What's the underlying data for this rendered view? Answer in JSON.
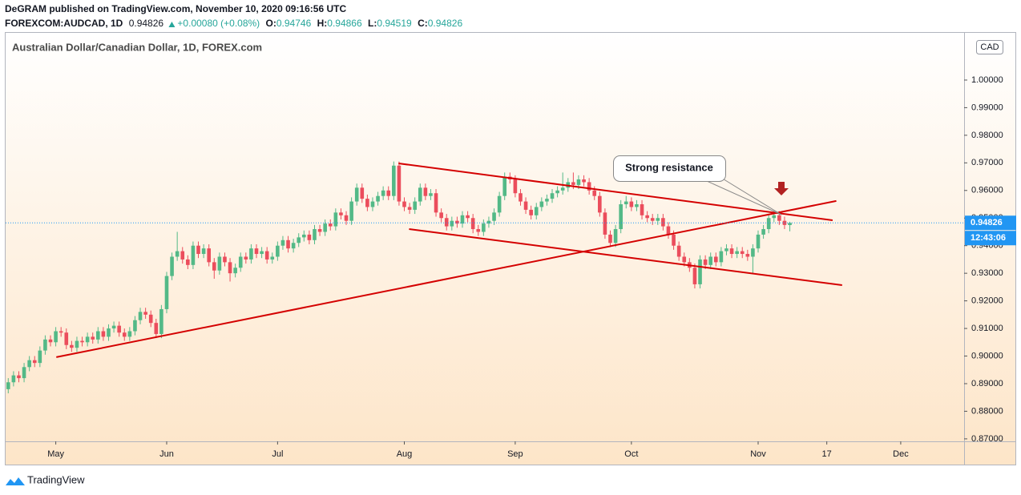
{
  "header": {
    "publisher": "DeGRAM published on TradingView.com, November 10, 2020 09:16:56 UTC",
    "symbol": "FOREXCOM:AUDCAD, 1D",
    "change": "+0.00080 (+0.08%)",
    "ohlc_labels": [
      "O:",
      "H:",
      "L:",
      "C:"
    ]
  },
  "brand": "TradingView",
  "chart_data": {
    "type": "candlestick",
    "title": "Australian Dollar/Canadian Dollar, 1D, FOREX.com",
    "currency": "CAD",
    "countdown": "12:43:06",
    "annotation": "Strong resistance",
    "up_color": "#53b987",
    "down_color": "#eb4d5c",
    "line_color": "#d40000",
    "price_line_color": "#2196f3",
    "xlim": [
      -0.5,
      181
    ],
    "ylim": [
      0.8691,
      1.0174
    ],
    "xticks": [
      {
        "value": 9,
        "label": "May"
      },
      {
        "value": 30,
        "label": "Jun"
      },
      {
        "value": 51,
        "label": "Jul"
      },
      {
        "value": 75,
        "label": "Aug"
      },
      {
        "value": 96,
        "label": "Sep"
      },
      {
        "value": 118,
        "label": "Oct"
      },
      {
        "value": 142,
        "label": "Nov"
      },
      {
        "value": 155,
        "label": "17"
      },
      {
        "value": 169,
        "label": "Dec"
      }
    ],
    "yticks": [
      {
        "value": 0.87,
        "label": "0.87000"
      },
      {
        "value": 0.88,
        "label": "0.88000"
      },
      {
        "value": 0.89,
        "label": "0.89000"
      },
      {
        "value": 0.9,
        "label": "0.90000"
      },
      {
        "value": 0.91,
        "label": "0.91000"
      },
      {
        "value": 0.92,
        "label": "0.92000"
      },
      {
        "value": 0.93,
        "label": "0.93000"
      },
      {
        "value": 0.94,
        "label": "0.94000"
      },
      {
        "value": 0.95,
        "label": "0.95000"
      },
      {
        "value": 0.96,
        "label": "0.96000"
      },
      {
        "value": 0.97,
        "label": "0.97000"
      },
      {
        "value": 0.98,
        "label": "0.98000"
      },
      {
        "value": 0.99,
        "label": "0.99000"
      },
      {
        "value": 1,
        "label": "1.00000"
      }
    ],
    "trendlines": [
      {
        "from": [
          9.1,
          0.8996
        ],
        "to": [
          156.8,
          0.9562
        ]
      },
      {
        "from": [
          73.9,
          0.9698
        ],
        "to": [
          156.1,
          0.9492
        ]
      },
      {
        "from": [
          75.9,
          0.946
        ],
        "to": [
          157.9,
          0.9257
        ]
      }
    ],
    "candles": [
      [
        0.888,
        0.892,
        0.8865,
        0.8905
      ],
      [
        0.8905,
        0.8945,
        0.889,
        0.893
      ],
      [
        0.893,
        0.8945,
        0.8905,
        0.892
      ],
      [
        0.892,
        0.8975,
        0.8905,
        0.896
      ],
      [
        0.896,
        0.9,
        0.8945,
        0.8985
      ],
      [
        0.8985,
        0.9,
        0.896,
        0.8975
      ],
      [
        0.8975,
        0.9035,
        0.896,
        0.902
      ],
      [
        0.902,
        0.9075,
        0.9005,
        0.906
      ],
      [
        0.906,
        0.9075,
        0.9035,
        0.905
      ],
      [
        0.905,
        0.9105,
        0.9035,
        0.909
      ],
      [
        0.909,
        0.9105,
        0.907,
        0.9085
      ],
      [
        0.9085,
        0.91,
        0.9025,
        0.904
      ],
      [
        0.904,
        0.9055,
        0.9015,
        0.903
      ],
      [
        0.903,
        0.907,
        0.9015,
        0.9055
      ],
      [
        0.9055,
        0.907,
        0.9035,
        0.905
      ],
      [
        0.905,
        0.9085,
        0.9035,
        0.907
      ],
      [
        0.907,
        0.9085,
        0.9045,
        0.906
      ],
      [
        0.906,
        0.9105,
        0.9045,
        0.909
      ],
      [
        0.909,
        0.9105,
        0.9055,
        0.907
      ],
      [
        0.907,
        0.9115,
        0.9055,
        0.91
      ],
      [
        0.91,
        0.9125,
        0.9085,
        0.911
      ],
      [
        0.911,
        0.9125,
        0.907,
        0.9085
      ],
      [
        0.9085,
        0.91,
        0.9055,
        0.907
      ],
      [
        0.907,
        0.9105,
        0.9055,
        0.909
      ],
      [
        0.909,
        0.9145,
        0.9075,
        0.913
      ],
      [
        0.913,
        0.9175,
        0.9115,
        0.916
      ],
      [
        0.916,
        0.9175,
        0.9135,
        0.915
      ],
      [
        0.915,
        0.9165,
        0.9105,
        0.912
      ],
      [
        0.912,
        0.9135,
        0.9065,
        0.908
      ],
      [
        0.908,
        0.9185,
        0.9065,
        0.917
      ],
      [
        0.917,
        0.9305,
        0.9155,
        0.929
      ],
      [
        0.929,
        0.9375,
        0.9275,
        0.936
      ],
      [
        0.936,
        0.945,
        0.9345,
        0.938
      ],
      [
        0.938,
        0.9395,
        0.9335,
        0.935
      ],
      [
        0.935,
        0.9365,
        0.9315,
        0.933
      ],
      [
        0.933,
        0.9415,
        0.9315,
        0.94
      ],
      [
        0.94,
        0.9415,
        0.9355,
        0.937
      ],
      [
        0.937,
        0.9405,
        0.9355,
        0.939
      ],
      [
        0.939,
        0.9405,
        0.9325,
        0.934
      ],
      [
        0.934,
        0.9355,
        0.928,
        0.931
      ],
      [
        0.931,
        0.9375,
        0.9295,
        0.936
      ],
      [
        0.936,
        0.9375,
        0.9325,
        0.934
      ],
      [
        0.934,
        0.9355,
        0.927,
        0.93
      ],
      [
        0.93,
        0.9335,
        0.9285,
        0.932
      ],
      [
        0.932,
        0.9375,
        0.9305,
        0.936
      ],
      [
        0.936,
        0.9375,
        0.9335,
        0.935
      ],
      [
        0.935,
        0.9405,
        0.9335,
        0.939
      ],
      [
        0.939,
        0.9405,
        0.9355,
        0.937
      ],
      [
        0.937,
        0.9395,
        0.9355,
        0.938
      ],
      [
        0.938,
        0.9395,
        0.9335,
        0.935
      ],
      [
        0.935,
        0.9375,
        0.9335,
        0.936
      ],
      [
        0.936,
        0.9415,
        0.9345,
        0.94
      ],
      [
        0.94,
        0.9435,
        0.9385,
        0.942
      ],
      [
        0.942,
        0.9435,
        0.9375,
        0.939
      ],
      [
        0.939,
        0.9425,
        0.9375,
        0.941
      ],
      [
        0.941,
        0.9445,
        0.9395,
        0.943
      ],
      [
        0.943,
        0.9455,
        0.9415,
        0.944
      ],
      [
        0.944,
        0.9455,
        0.9405,
        0.942
      ],
      [
        0.942,
        0.9475,
        0.9405,
        0.946
      ],
      [
        0.946,
        0.9475,
        0.9435,
        0.945
      ],
      [
        0.945,
        0.9495,
        0.9435,
        0.948
      ],
      [
        0.948,
        0.9495,
        0.9455,
        0.947
      ],
      [
        0.947,
        0.9535,
        0.9455,
        0.952
      ],
      [
        0.952,
        0.9535,
        0.9495,
        0.951
      ],
      [
        0.951,
        0.9525,
        0.9475,
        0.949
      ],
      [
        0.949,
        0.9575,
        0.9475,
        0.956
      ],
      [
        0.956,
        0.9625,
        0.9545,
        0.961
      ],
      [
        0.961,
        0.9625,
        0.9555,
        0.957
      ],
      [
        0.957,
        0.9585,
        0.9525,
        0.954
      ],
      [
        0.954,
        0.9575,
        0.9525,
        0.956
      ],
      [
        0.956,
        0.9595,
        0.9545,
        0.958
      ],
      [
        0.958,
        0.9615,
        0.9565,
        0.96
      ],
      [
        0.96,
        0.9615,
        0.9565,
        0.958
      ],
      [
        0.958,
        0.9705,
        0.9565,
        0.969
      ],
      [
        0.969,
        0.9705,
        0.9545,
        0.956
      ],
      [
        0.956,
        0.9575,
        0.9525,
        0.954
      ],
      [
        0.954,
        0.9555,
        0.9515,
        0.953
      ],
      [
        0.953,
        0.9575,
        0.9515,
        0.956
      ],
      [
        0.956,
        0.9625,
        0.9545,
        0.961
      ],
      [
        0.961,
        0.9625,
        0.9565,
        0.958
      ],
      [
        0.958,
        0.9605,
        0.9565,
        0.959
      ],
      [
        0.959,
        0.9605,
        0.9505,
        0.952
      ],
      [
        0.952,
        0.9535,
        0.9485,
        0.95
      ],
      [
        0.95,
        0.9515,
        0.9455,
        0.947
      ],
      [
        0.947,
        0.9505,
        0.9455,
        0.949
      ],
      [
        0.949,
        0.9505,
        0.9465,
        0.948
      ],
      [
        0.948,
        0.9525,
        0.9465,
        0.951
      ],
      [
        0.951,
        0.9525,
        0.9485,
        0.95
      ],
      [
        0.95,
        0.9515,
        0.9445,
        0.946
      ],
      [
        0.946,
        0.9475,
        0.9435,
        0.945
      ],
      [
        0.945,
        0.9495,
        0.9435,
        0.948
      ],
      [
        0.948,
        0.9505,
        0.9465,
        0.949
      ],
      [
        0.949,
        0.9535,
        0.9475,
        0.952
      ],
      [
        0.952,
        0.9595,
        0.9505,
        0.958
      ],
      [
        0.958,
        0.9665,
        0.9565,
        0.965
      ],
      [
        0.965,
        0.9665,
        0.9625,
        0.964
      ],
      [
        0.964,
        0.9655,
        0.9575,
        0.959
      ],
      [
        0.959,
        0.9605,
        0.9545,
        0.956
      ],
      [
        0.956,
        0.9575,
        0.9515,
        0.953
      ],
      [
        0.953,
        0.9545,
        0.9495,
        0.951
      ],
      [
        0.951,
        0.9555,
        0.9495,
        0.954
      ],
      [
        0.954,
        0.9575,
        0.9525,
        0.956
      ],
      [
        0.956,
        0.9585,
        0.9545,
        0.957
      ],
      [
        0.957,
        0.9605,
        0.9555,
        0.959
      ],
      [
        0.959,
        0.9615,
        0.9575,
        0.96
      ],
      [
        0.96,
        0.9665,
        0.9585,
        0.961
      ],
      [
        0.961,
        0.9645,
        0.9595,
        0.963
      ],
      [
        0.963,
        0.9665,
        0.9605,
        0.962
      ],
      [
        0.962,
        0.9655,
        0.9605,
        0.964
      ],
      [
        0.964,
        0.9655,
        0.9615,
        0.963
      ],
      [
        0.963,
        0.9645,
        0.9585,
        0.96
      ],
      [
        0.96,
        0.9615,
        0.9565,
        0.958
      ],
      [
        0.958,
        0.9595,
        0.9505,
        0.952
      ],
      [
        0.952,
        0.9535,
        0.9425,
        0.944
      ],
      [
        0.944,
        0.9455,
        0.9395,
        0.941
      ],
      [
        0.941,
        0.9475,
        0.9395,
        0.946
      ],
      [
        0.946,
        0.9565,
        0.9445,
        0.955
      ],
      [
        0.955,
        0.958,
        0.9535,
        0.956
      ],
      [
        0.956,
        0.9575,
        0.9525,
        0.954
      ],
      [
        0.954,
        0.9565,
        0.9525,
        0.955
      ],
      [
        0.955,
        0.9565,
        0.9495,
        0.951
      ],
      [
        0.951,
        0.9525,
        0.9485,
        0.95
      ],
      [
        0.95,
        0.9515,
        0.9475,
        0.949
      ],
      [
        0.949,
        0.9515,
        0.9475,
        0.95
      ],
      [
        0.95,
        0.9515,
        0.9455,
        0.947
      ],
      [
        0.947,
        0.9485,
        0.9425,
        0.944
      ],
      [
        0.944,
        0.9455,
        0.9385,
        0.94
      ],
      [
        0.94,
        0.9415,
        0.9345,
        0.936
      ],
      [
        0.936,
        0.9375,
        0.9325,
        0.934
      ],
      [
        0.934,
        0.9355,
        0.9305,
        0.932
      ],
      [
        0.932,
        0.9335,
        0.9245,
        0.926
      ],
      [
        0.926,
        0.9365,
        0.9245,
        0.935
      ],
      [
        0.935,
        0.9365,
        0.9315,
        0.933
      ],
      [
        0.933,
        0.9375,
        0.9315,
        0.936
      ],
      [
        0.936,
        0.9375,
        0.9325,
        0.934
      ],
      [
        0.934,
        0.9395,
        0.9325,
        0.938
      ],
      [
        0.938,
        0.9405,
        0.9365,
        0.939
      ],
      [
        0.939,
        0.9405,
        0.9355,
        0.937
      ],
      [
        0.937,
        0.9395,
        0.9355,
        0.938
      ],
      [
        0.938,
        0.9395,
        0.9355,
        0.937
      ],
      [
        0.937,
        0.9385,
        0.9345,
        0.936
      ],
      [
        0.936,
        0.9405,
        0.93,
        0.939
      ],
      [
        0.939,
        0.9455,
        0.9375,
        0.944
      ],
      [
        0.944,
        0.9475,
        0.9425,
        0.946
      ],
      [
        0.946,
        0.9515,
        0.9445,
        0.95
      ],
      [
        0.95,
        0.9525,
        0.9485,
        0.951
      ],
      [
        0.951,
        0.9525,
        0.9475,
        0.949
      ],
      [
        0.949,
        0.9505,
        0.946,
        0.9475
      ],
      [
        0.94746,
        0.94866,
        0.94519,
        0.94826
      ]
    ]
  }
}
